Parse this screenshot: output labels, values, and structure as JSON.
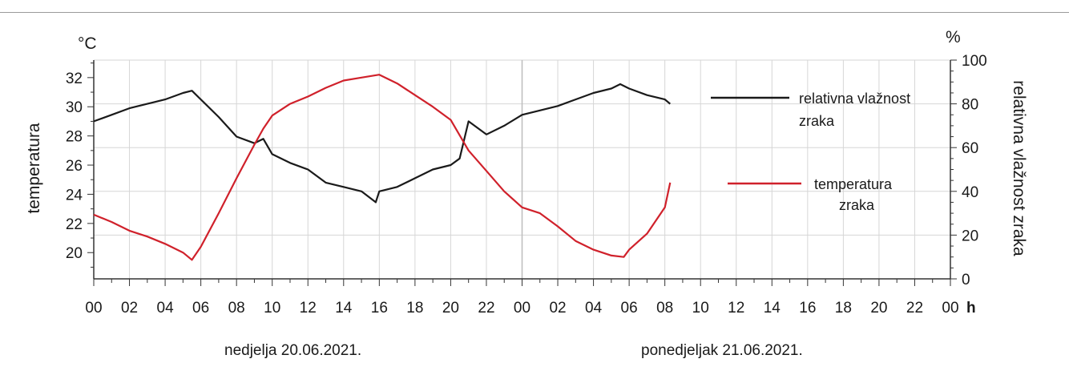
{
  "chart_data": {
    "type": "line",
    "x_unit": "h",
    "x_tick_labels": [
      "00",
      "02",
      "04",
      "06",
      "08",
      "10",
      "12",
      "14",
      "16",
      "18",
      "20",
      "22",
      "00",
      "02",
      "04",
      "06",
      "08",
      "10",
      "12",
      "14",
      "16",
      "18",
      "20",
      "22",
      "00"
    ],
    "y_left": {
      "label": "temperatura",
      "unit": "°C",
      "ylim": [
        18.2,
        33.2
      ],
      "ticks": [
        20,
        22,
        24,
        26,
        28,
        30,
        32
      ]
    },
    "y_right": {
      "label": "relativna vlažnost zraka",
      "unit": "%",
      "ylim": [
        0,
        100
      ],
      "ticks": [
        0,
        20,
        40,
        60,
        80,
        100
      ]
    },
    "grid": true,
    "legend_placement": "right",
    "dates": [
      "nedjelja 20.06.2021.",
      "ponedjeljak 21.06.2021."
    ],
    "series": [
      {
        "name": "relativna vlažnost zraka",
        "line1": "relativna vlažnost",
        "line2": "zraka",
        "axis": "right",
        "color": "#1a1a1a",
        "x": [
          0,
          1,
          2,
          3,
          4,
          5,
          5.5,
          6,
          7,
          8,
          9,
          9.5,
          10,
          11,
          12,
          13,
          14,
          15,
          15.8,
          16,
          17,
          18,
          19,
          20,
          20.5,
          21,
          22,
          23,
          24,
          25,
          26,
          27,
          28,
          29,
          29.5,
          30,
          31,
          32,
          32.3
        ],
        "y": [
          72,
          75,
          78,
          80,
          82,
          85,
          86,
          82,
          74,
          65,
          62,
          64,
          57,
          53,
          50,
          44,
          42,
          40,
          35,
          40,
          42,
          46,
          50,
          52,
          55,
          72,
          66,
          70,
          75,
          77,
          79,
          82,
          85,
          87,
          89,
          87,
          84,
          82,
          80
        ]
      },
      {
        "name": "temperatura zraka",
        "line1": "temperatura",
        "line2": "zraka",
        "axis": "left",
        "color": "#d0212b",
        "x": [
          0,
          1,
          2,
          3,
          4,
          5,
          5.5,
          6,
          7,
          8,
          9,
          9.5,
          10,
          11,
          12,
          13,
          14,
          15,
          16,
          17,
          18,
          19,
          20,
          21,
          22,
          23,
          24,
          25,
          26,
          27,
          28,
          29,
          29.7,
          30,
          31,
          32,
          32.3
        ],
        "y": [
          22.6,
          22.1,
          21.5,
          21.1,
          20.6,
          20.0,
          19.5,
          20.4,
          22.7,
          25.1,
          27.4,
          28.5,
          29.4,
          30.2,
          30.7,
          31.3,
          31.8,
          32.0,
          32.2,
          31.6,
          30.8,
          30.0,
          29.1,
          27.0,
          25.6,
          24.2,
          23.1,
          22.7,
          21.8,
          20.8,
          20.2,
          19.8,
          19.7,
          20.2,
          21.3,
          23.1,
          24.8
        ]
      }
    ]
  }
}
